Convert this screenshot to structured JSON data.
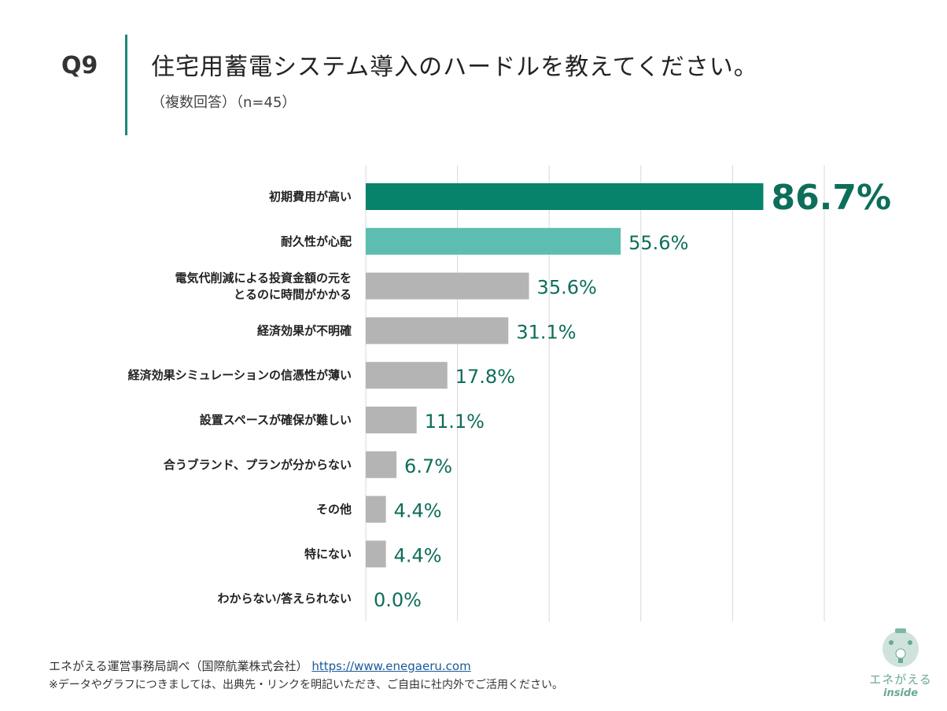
{
  "header": {
    "question": "Q9",
    "title": "住宅用蓄電システム導入のハードルを教えてください。",
    "subtitle": "（複数回答）（n=45）"
  },
  "colors": {
    "highlight": "#07826b",
    "second": "#5dbdb0",
    "default": "#b4b4b4",
    "label": "#0d6e5a",
    "grid": "#d9d9d9"
  },
  "chart_data": {
    "type": "bar",
    "orientation": "horizontal",
    "xlim": [
      0,
      100
    ],
    "grid": true,
    "categories": [
      "初期費用が高い",
      "耐久性が心配",
      "電気代削減による投資金額の元を\nとるのに時間がかかる",
      "経済効果が不明確",
      "経済効果シミュレーションの信憑性が薄い",
      "設置スペースが確保が難しい",
      "合うブランド、プランが分からない",
      "その他",
      "特にない",
      "わからない/答えられない"
    ],
    "values": [
      86.7,
      55.6,
      35.6,
      31.1,
      17.8,
      11.1,
      6.7,
      4.4,
      4.4,
      0.0
    ],
    "data_labels": [
      "86.7%",
      "55.6%",
      "35.6%",
      "31.1%",
      "17.8%",
      "11.1%",
      "6.7%",
      "4.4%",
      "4.4%",
      "0.0%"
    ]
  },
  "footer": {
    "source": "エネがえる運営事務局調べ（国際航業株式会社）",
    "url": "https://www.enegaeru.com",
    "note": "※データやグラフにつきましては、出典先・リンクを明記いただき、ご自由に社内外でご活用ください。"
  },
  "logo": {
    "text": "エネがえる",
    "sub": "inside"
  }
}
